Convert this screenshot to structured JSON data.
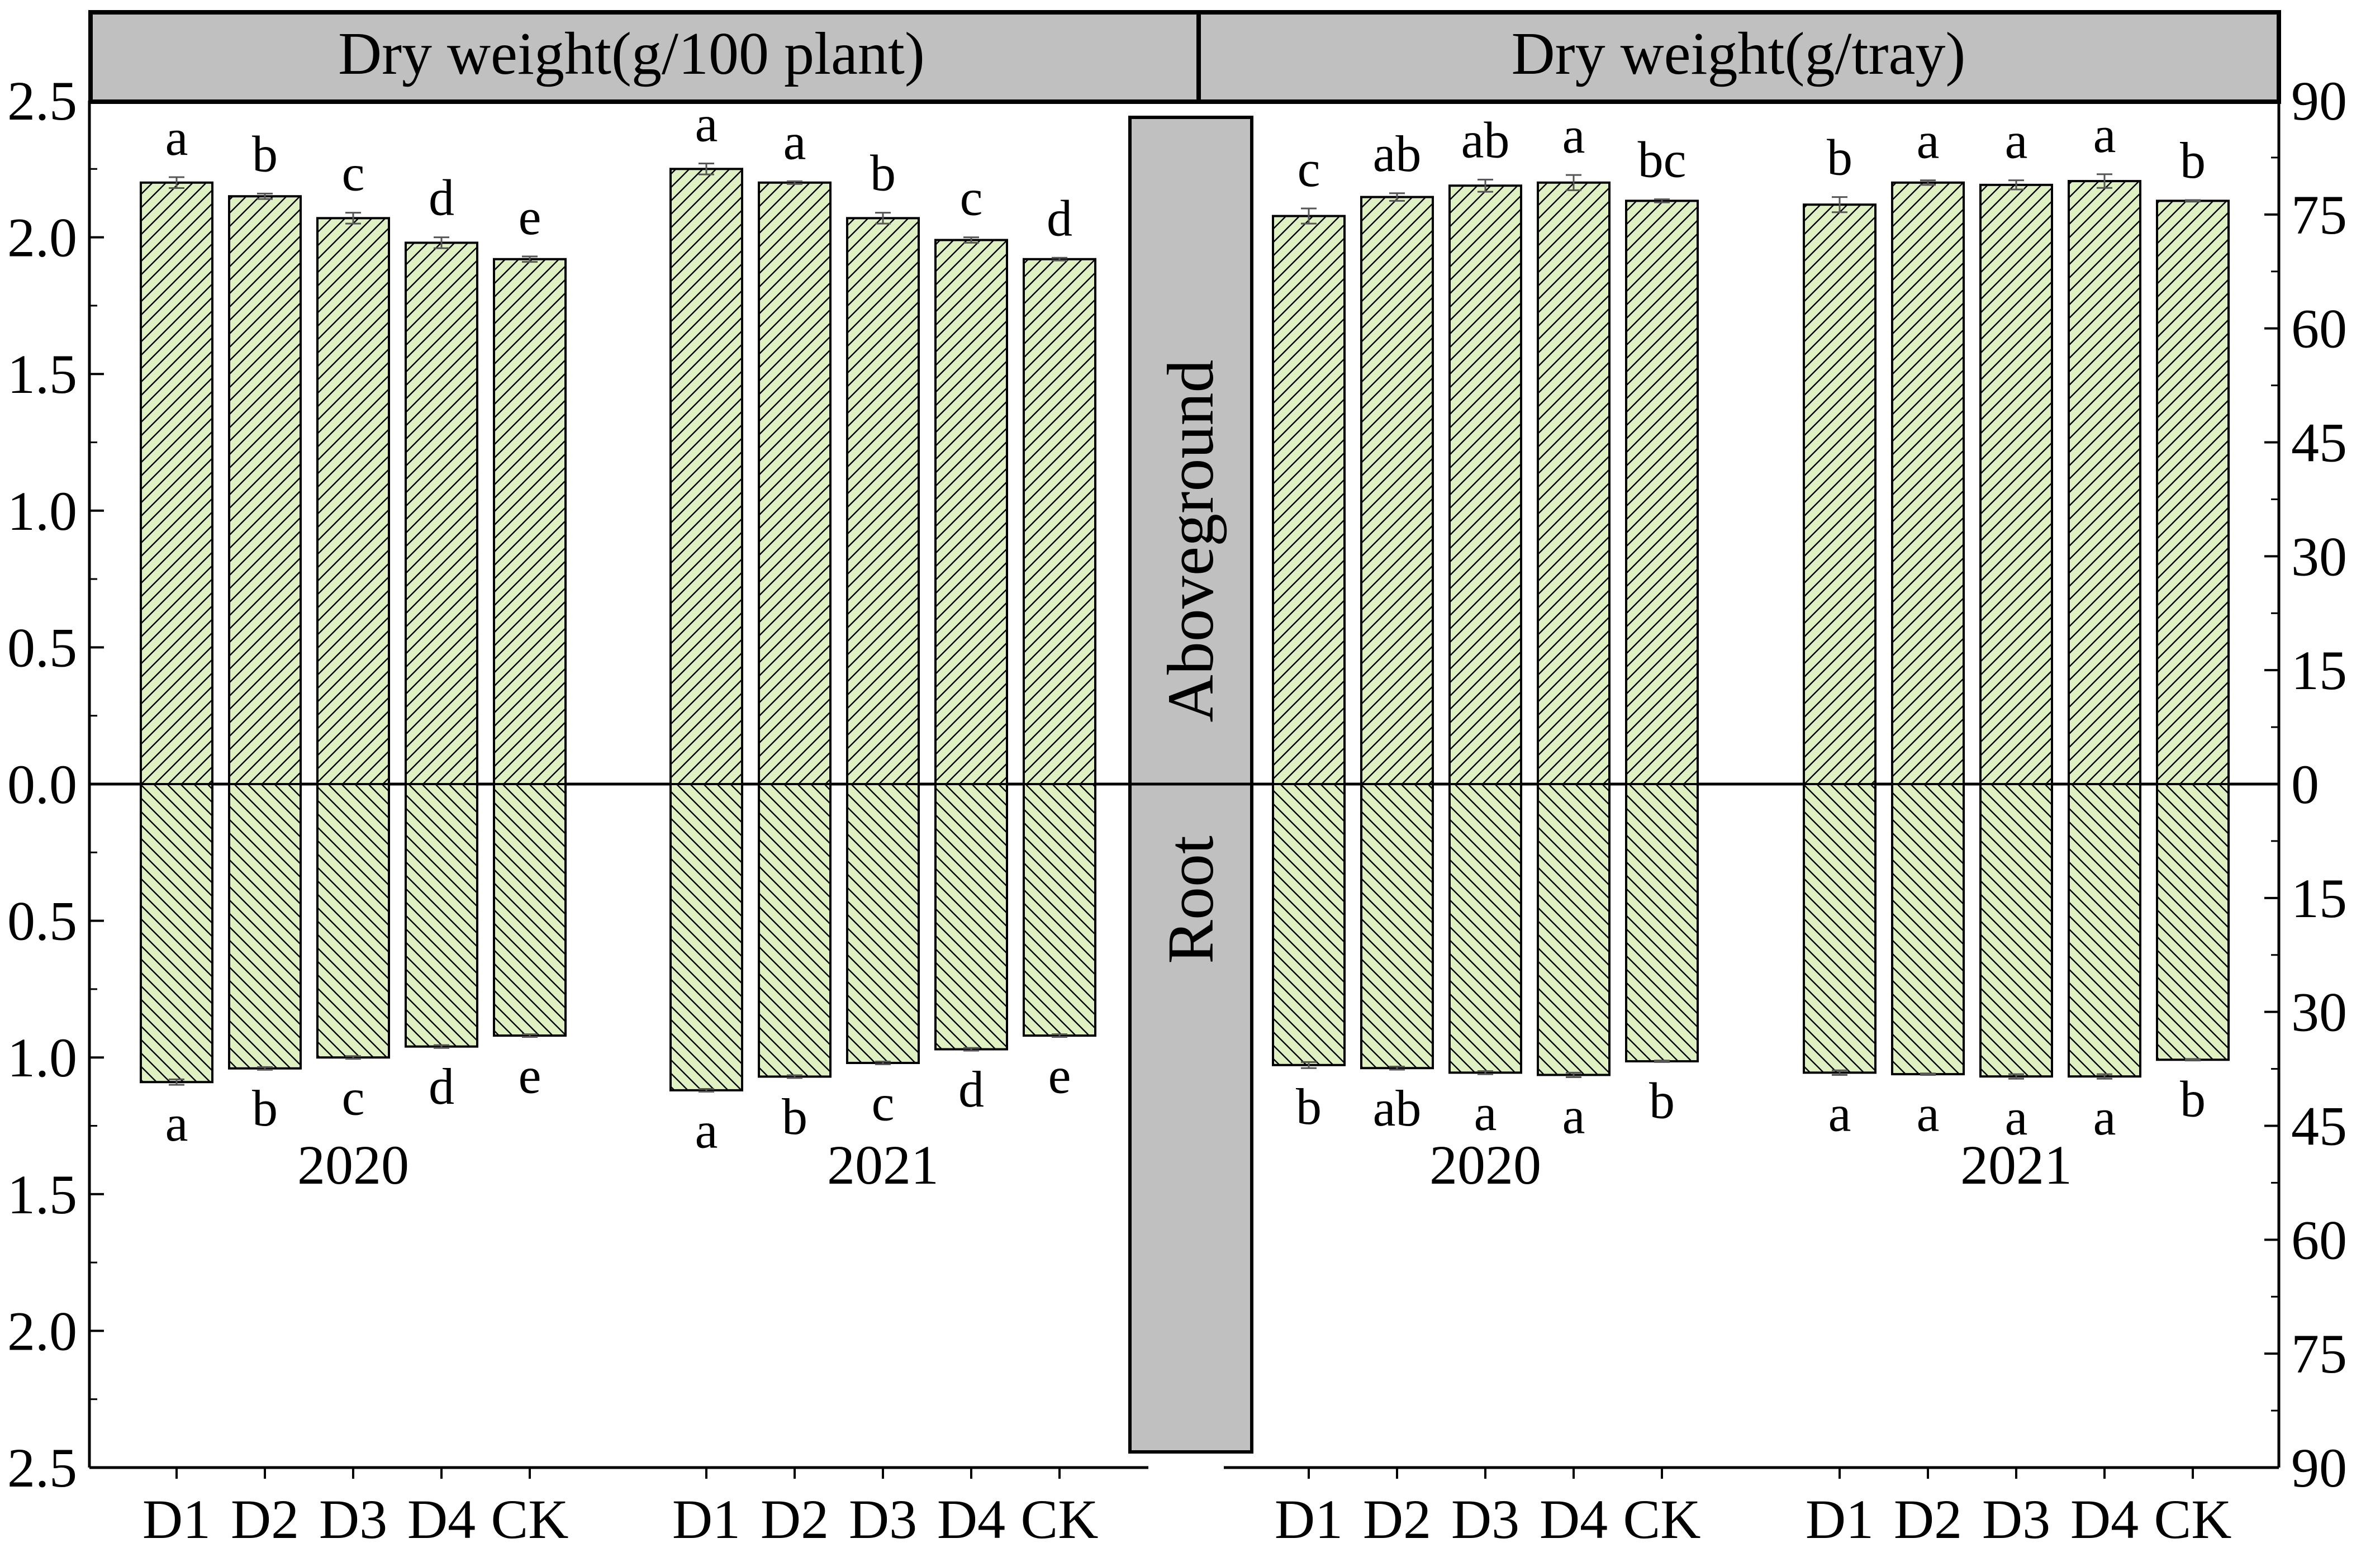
{
  "chart_data": {
    "type": "bar",
    "hatch_color": "#000000",
    "bar_fill": "#dff0c2",
    "panel_fill": "#c0c0c0",
    "panels": [
      {
        "header": "Dry weight(g/100 plant)",
        "axis_side": "left",
        "ylim_top": [
          0,
          2.5
        ],
        "ylim_bottom": [
          0,
          2.5
        ],
        "yticks_top": [
          "0.0",
          "0.5",
          "1.0",
          "1.5",
          "2.0",
          "2.5"
        ],
        "yticks_bottom": [
          "0.5",
          "1.0",
          "1.5",
          "2.0",
          "2.5"
        ],
        "groups": [
          {
            "year": "2020",
            "categories": [
              "D1",
              "D2",
              "D3",
              "D4",
              "CK"
            ],
            "aboveground": [
              2.2,
              2.15,
              2.07,
              1.98,
              1.92
            ],
            "aboveground_err": [
              0.02,
              0.01,
              0.02,
              0.02,
              0.01
            ],
            "aboveground_sig": [
              "a",
              "b",
              "c",
              "d",
              "e"
            ],
            "root": [
              1.09,
              1.04,
              1.0,
              0.96,
              0.92
            ],
            "root_err": [
              0.01,
              0.005,
              0.005,
              0.005,
              0.005
            ],
            "root_sig": [
              "a",
              "b",
              "c",
              "d",
              "e"
            ]
          },
          {
            "year": "2021",
            "categories": [
              "D1",
              "D2",
              "D3",
              "D4",
              "CK"
            ],
            "aboveground": [
              2.25,
              2.2,
              2.07,
              1.99,
              1.92
            ],
            "aboveground_err": [
              0.02,
              0.005,
              0.02,
              0.01,
              0.005
            ],
            "aboveground_sig": [
              "a",
              "a",
              "b",
              "c",
              "d"
            ],
            "root": [
              1.12,
              1.07,
              1.02,
              0.97,
              0.92
            ],
            "root_err": [
              0.005,
              0.005,
              0.005,
              0.005,
              0.005
            ],
            "root_sig": [
              "a",
              "b",
              "c",
              "d",
              "e"
            ]
          }
        ]
      },
      {
        "header": "Dry weight(g/tray)",
        "axis_side": "right",
        "ylim_top": [
          0,
          90
        ],
        "ylim_bottom": [
          0,
          90
        ],
        "yticks_top": [
          "0",
          "15",
          "30",
          "45",
          "60",
          "75",
          "90"
        ],
        "yticks_bottom": [
          "15",
          "30",
          "45",
          "60",
          "75",
          "90"
        ],
        "groups": [
          {
            "year": "2020",
            "categories": [
              "D1",
              "D2",
              "D3",
              "D4",
              "CK"
            ],
            "aboveground": [
              74.8,
              77.3,
              78.8,
              79.2,
              76.8
            ],
            "aboveground_err": [
              1.0,
              0.5,
              0.8,
              1.0,
              0.2
            ],
            "aboveground_sig": [
              "c",
              "ab",
              "ab",
              "a",
              "bc"
            ],
            "root": [
              37.0,
              37.4,
              38.0,
              38.3,
              36.5
            ],
            "root_err": [
              0.4,
              0.2,
              0.2,
              0.3,
              0.1
            ],
            "root_sig": [
              "b",
              "ab",
              "a",
              "a",
              "b"
            ]
          },
          {
            "year": "2021",
            "categories": [
              "D1",
              "D2",
              "D3",
              "D4",
              "CK"
            ],
            "aboveground": [
              76.3,
              79.2,
              78.9,
              79.4,
              76.8
            ],
            "aboveground_err": [
              1.0,
              0.3,
              0.6,
              0.9,
              0.1
            ],
            "aboveground_sig": [
              "b",
              "a",
              "a",
              "a",
              "b"
            ],
            "root": [
              38.0,
              38.2,
              38.5,
              38.5,
              36.3
            ],
            "root_err": [
              0.3,
              0.1,
              0.3,
              0.3,
              0.1
            ],
            "root_sig": [
              "a",
              "a",
              "a",
              "a",
              "b"
            ]
          }
        ]
      }
    ],
    "middle_labels": {
      "aboveground": "Aboveground",
      "root": "Root"
    }
  }
}
